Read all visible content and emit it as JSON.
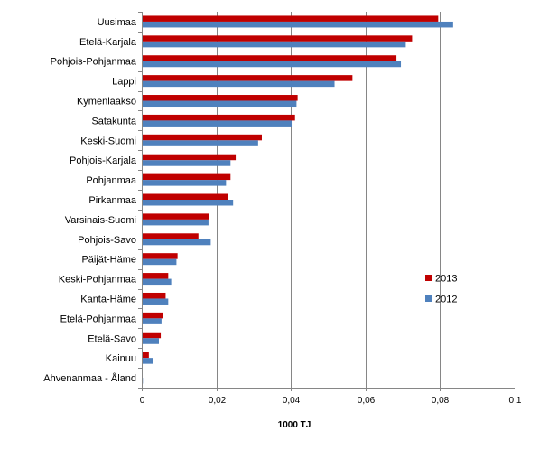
{
  "chart_data": {
    "type": "bar",
    "orientation": "horizontal",
    "categories": [
      "Uusimaa",
      "Etelä-Karjala",
      "Pohjois-Pohjanmaa",
      "Lappi",
      "Kymenlaakso",
      "Satakunta",
      "Keski-Suomi",
      "Pohjois-Karjala",
      "Pohjanmaa",
      "Pirkanmaa",
      "Varsinais-Suomi",
      "Pohjois-Savo",
      "Päijät-Häme",
      "Keski-Pohjanmaa",
      "Kanta-Häme",
      "Etelä-Pohjanmaa",
      "Etelä-Savo",
      "Kainuu",
      "Ahvenanmaa - Åland"
    ],
    "series": [
      {
        "name": "2013",
        "color": "#C00000",
        "values": [
          0.0795,
          0.0725,
          0.0683,
          0.0565,
          0.0418,
          0.0411,
          0.0322,
          0.0252,
          0.0238,
          0.0231,
          0.0181,
          0.0152,
          0.0096,
          0.0071,
          0.0064,
          0.0056,
          0.0051,
          0.0019,
          0.0001
        ]
      },
      {
        "name": "2012",
        "color": "#4F81BD",
        "values": [
          0.0835,
          0.0708,
          0.0695,
          0.0517,
          0.0415,
          0.0402,
          0.0312,
          0.0238,
          0.0226,
          0.0245,
          0.0179,
          0.0185,
          0.0093,
          0.0079,
          0.0071,
          0.0053,
          0.0046,
          0.0031,
          0.0003
        ]
      }
    ],
    "x_ticks": [
      0,
      0.02,
      0.04,
      0.06,
      0.08,
      0.1
    ],
    "x_tick_labels": [
      "0",
      "0,02",
      "0,04",
      "0,06",
      "0,08",
      "0,1"
    ],
    "xlim": [
      0,
      0.1
    ],
    "xlabel": "1000 TJ",
    "ylabel": "",
    "title": "",
    "grid": "vertical",
    "legend": {
      "placement": "right",
      "order": [
        "2013",
        "2012"
      ]
    },
    "colors": {
      "gridline": "#868686",
      "axis": "#868686"
    }
  }
}
